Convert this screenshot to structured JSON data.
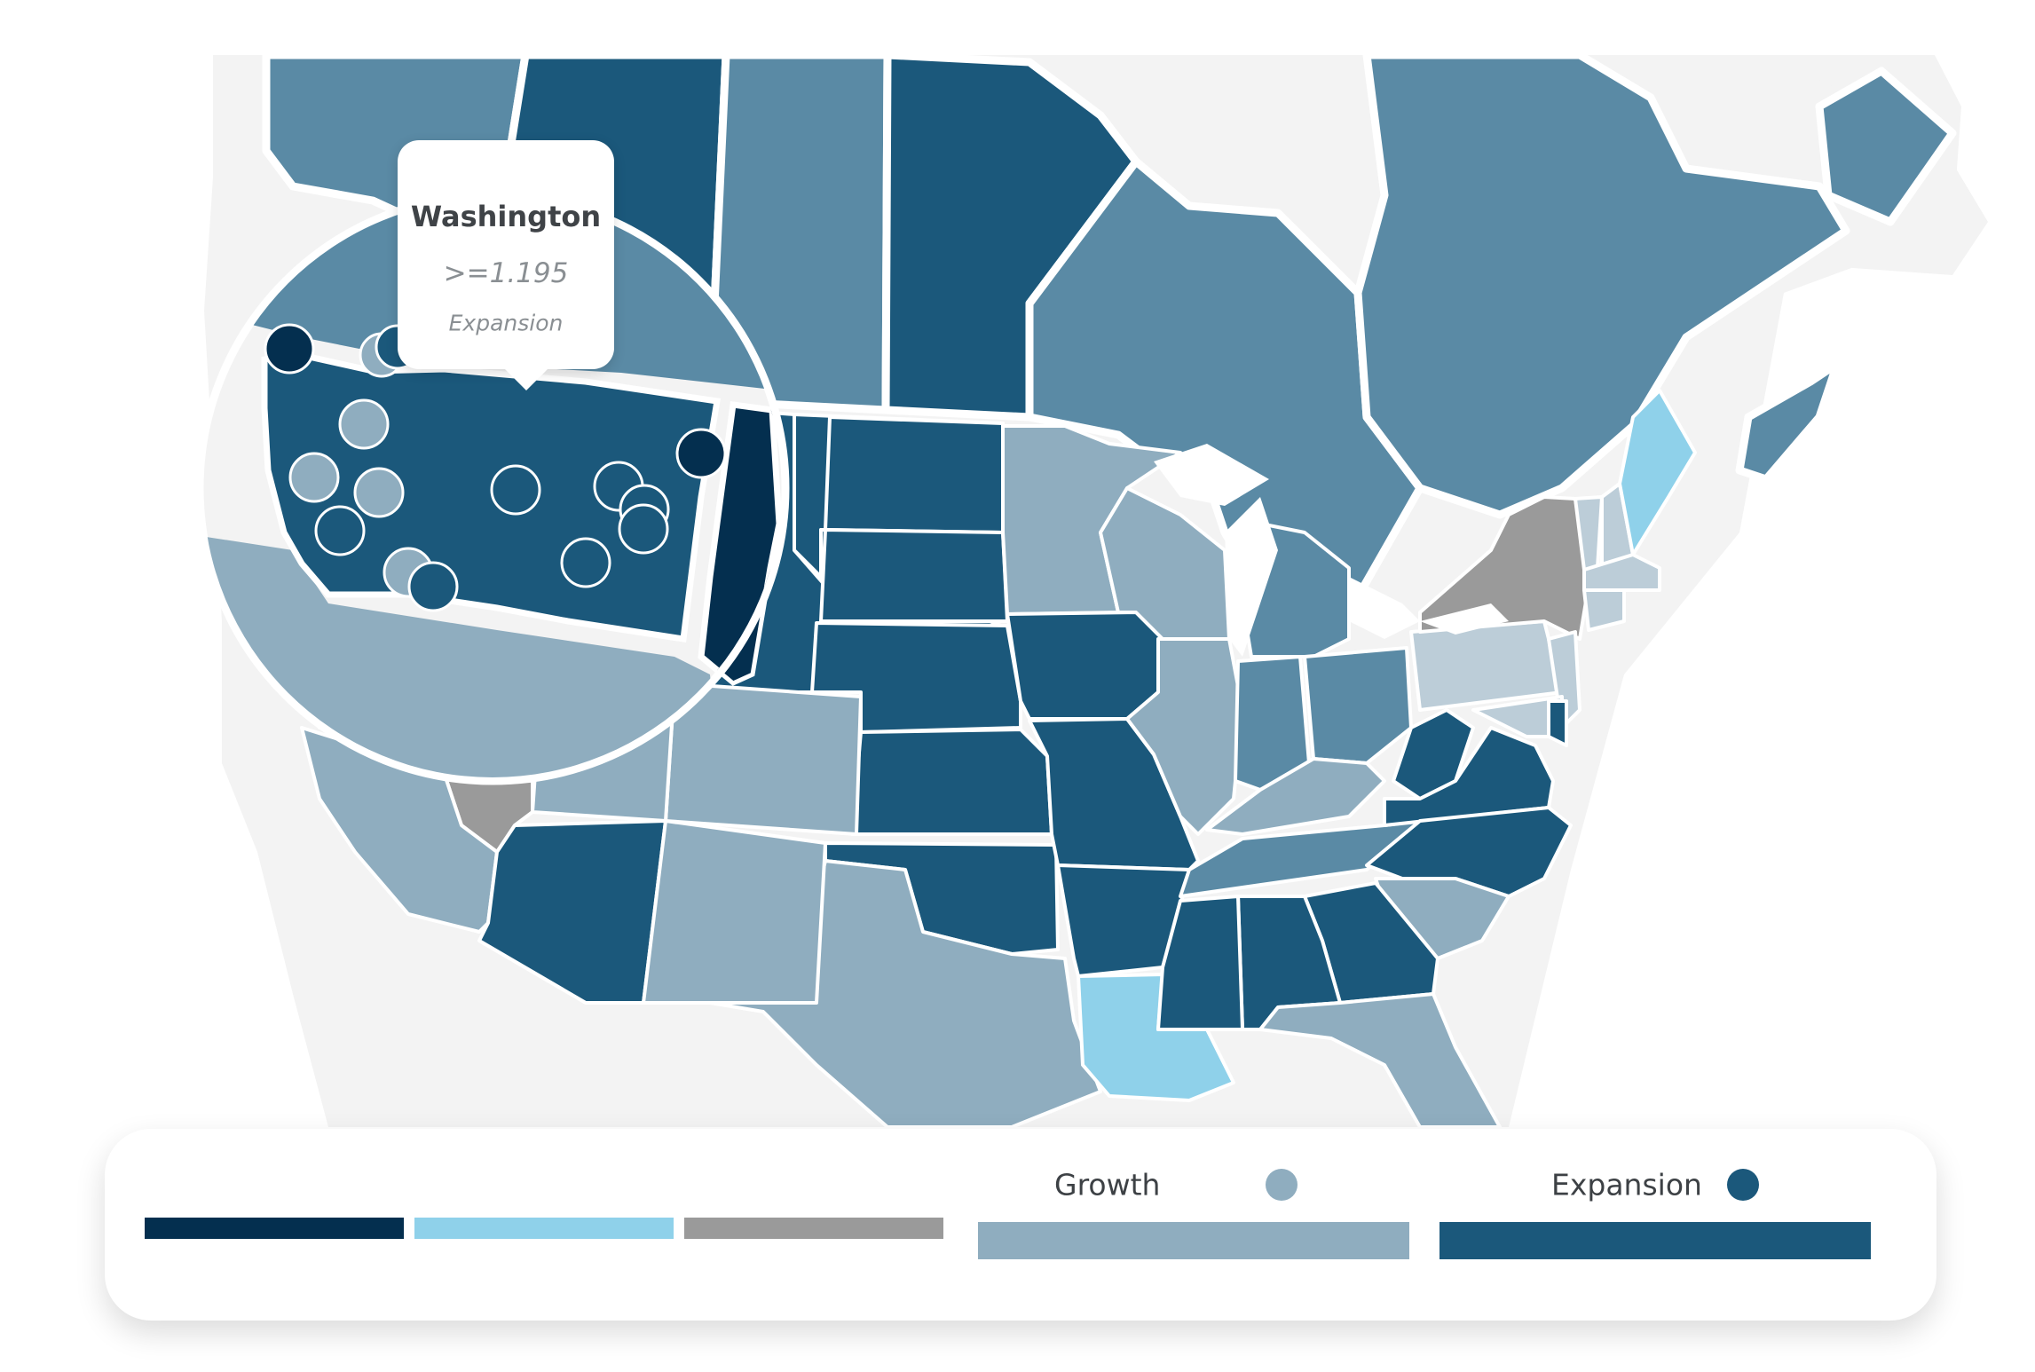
{
  "tooltip": {
    "title": "Washington",
    "value": ">=1.195",
    "category": "Expansion"
  },
  "legend": {
    "unlabeled_colors": [
      "#042f4f",
      "#8fd1ea",
      "#9a9a9a"
    ],
    "growth": {
      "label": "Growth",
      "color": "#8fadbf"
    },
    "expansion": {
      "label": "Expansion",
      "color": "#1b587b"
    }
  },
  "palette": {
    "background": "#f3f3f3",
    "canada": "#5a8aa5",
    "growth": "#8fadbf",
    "expansion": "#1b587b",
    "dark": "#042f4f",
    "light_blue": "#8fd1ea",
    "gray": "#9a9a9a",
    "pale": "#bccdd8"
  },
  "icons": {
    "washington_marker_growth": "growth-circle-icon",
    "washington_marker_expansion": "expansion-circle-icon"
  }
}
